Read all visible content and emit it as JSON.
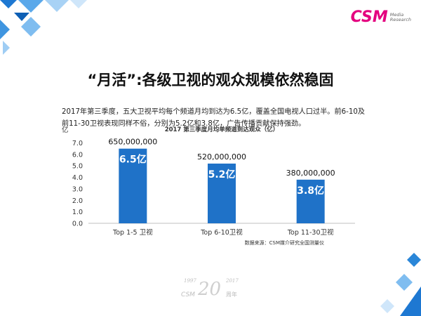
{
  "page": {
    "logo_text": "CSM",
    "logo_sub_line1": "Media",
    "logo_sub_line2": "Research",
    "title": "“月活”:各级卫视的观众规模依然稳固",
    "paragraph": "2017年第三季度，五大卫视平均每个频道月均到达为6.5亿，覆盖全国电视人口过半。前6-10及前11-30卫视表现同样不俗，分别为5.2亿和3.8亿，广告传播贡献保持强劲。",
    "anniversary": {
      "year_left": "1997",
      "number": "20",
      "year_right": "2017",
      "csm": "CSM",
      "suffix": "周年"
    }
  },
  "chart_data": {
    "type": "bar",
    "title": "2017 第三季度月均单频道到达观众（亿）",
    "y_unit_label": "亿",
    "categories": [
      "Top 1-5 卫视",
      "Top 6-10卫视",
      "Top 11-30卫视"
    ],
    "values": [
      6.5,
      5.2,
      3.8
    ],
    "bar_labels": [
      "6.5亿",
      "5.2亿",
      "3.8亿"
    ],
    "top_labels": [
      "650,000,000",
      "520,000,000",
      "380,000,000"
    ],
    "y_ticks": [
      "0.0",
      "1.0",
      "2.0",
      "3.0",
      "4.0",
      "5.0",
      "6.0",
      "7.0"
    ],
    "ylim": [
      0,
      7
    ],
    "bar_color": "#1f72c8",
    "source": "数据来源：CSM媒介研究全国测量仪"
  }
}
